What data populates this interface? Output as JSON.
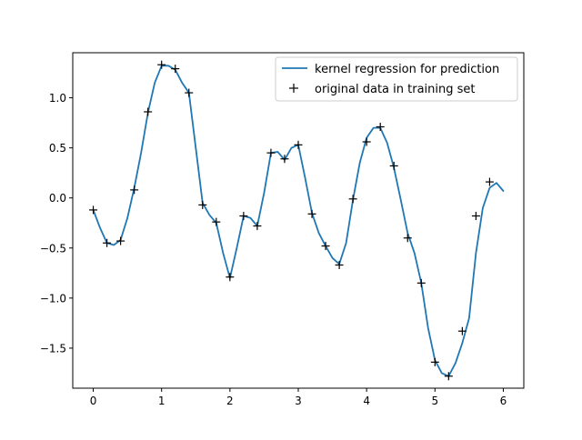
{
  "chart_data": {
    "type": "line",
    "title": "",
    "xlabel": "",
    "ylabel": "",
    "xlim": [
      -0.3,
      6.3
    ],
    "ylim": [
      -1.9,
      1.45
    ],
    "x_ticks": [
      0,
      1,
      2,
      3,
      4,
      5,
      6
    ],
    "x_tick_labels": [
      "0",
      "1",
      "2",
      "3",
      "4",
      "5",
      "6"
    ],
    "y_ticks": [
      -1.5,
      -1.0,
      -0.5,
      0.0,
      0.5,
      1.0
    ],
    "y_tick_labels": [
      "−1.5",
      "−1.0",
      "−0.5",
      "0.0",
      "0.5",
      "1.0"
    ],
    "grid": false,
    "legend_position": "upper right",
    "series": [
      {
        "name": "kernel regression for prediction",
        "kind": "line",
        "color": "#1f77b4",
        "x": [
          0.0,
          0.1,
          0.2,
          0.3,
          0.4,
          0.5,
          0.6,
          0.7,
          0.8,
          0.9,
          1.0,
          1.1,
          1.2,
          1.3,
          1.4,
          1.5,
          1.6,
          1.7,
          1.8,
          1.9,
          2.0,
          2.1,
          2.2,
          2.3,
          2.4,
          2.5,
          2.6,
          2.7,
          2.8,
          2.9,
          3.0,
          3.1,
          3.2,
          3.3,
          3.4,
          3.5,
          3.6,
          3.7,
          3.8,
          3.9,
          4.0,
          4.1,
          4.2,
          4.3,
          4.4,
          4.5,
          4.6,
          4.7,
          4.8,
          4.9,
          5.0,
          5.1,
          5.2,
          5.3,
          5.4,
          5.5,
          5.6,
          5.7,
          5.8,
          5.9,
          6.0
        ],
        "y": [
          -0.12,
          -0.3,
          -0.45,
          -0.47,
          -0.42,
          -0.2,
          0.1,
          0.45,
          0.85,
          1.15,
          1.32,
          1.32,
          1.28,
          1.15,
          1.05,
          0.5,
          -0.05,
          -0.17,
          -0.25,
          -0.55,
          -0.8,
          -0.5,
          -0.18,
          -0.2,
          -0.28,
          0.05,
          0.45,
          0.46,
          0.38,
          0.5,
          0.53,
          0.2,
          -0.15,
          -0.35,
          -0.48,
          -0.6,
          -0.66,
          -0.45,
          -0.02,
          0.35,
          0.6,
          0.7,
          0.7,
          0.55,
          0.3,
          -0.02,
          -0.35,
          -0.55,
          -0.85,
          -1.3,
          -1.62,
          -1.75,
          -1.78,
          -1.65,
          -1.45,
          -1.2,
          -0.55,
          -0.1,
          0.1,
          0.15,
          0.07
        ]
      },
      {
        "name": "original data in training set",
        "kind": "marker",
        "marker": "+",
        "color": "#000000",
        "x": [
          0.0,
          0.2,
          0.4,
          0.6,
          0.8,
          1.0,
          1.2,
          1.4,
          1.6,
          1.8,
          2.0,
          2.2,
          2.4,
          2.6,
          2.8,
          3.0,
          3.2,
          3.4,
          3.6,
          3.8,
          4.0,
          4.2,
          4.4,
          4.6,
          4.8,
          5.0,
          5.2,
          5.4,
          5.6,
          5.8
        ],
        "y": [
          -0.12,
          -0.45,
          -0.43,
          0.08,
          0.86,
          1.33,
          1.29,
          1.05,
          -0.07,
          -0.24,
          -0.79,
          -0.18,
          -0.28,
          0.45,
          0.39,
          0.53,
          -0.16,
          -0.48,
          -0.67,
          -0.01,
          0.56,
          0.71,
          0.32,
          -0.4,
          -0.85,
          -1.64,
          -1.78,
          -1.33,
          -0.18,
          0.16
        ]
      }
    ]
  }
}
